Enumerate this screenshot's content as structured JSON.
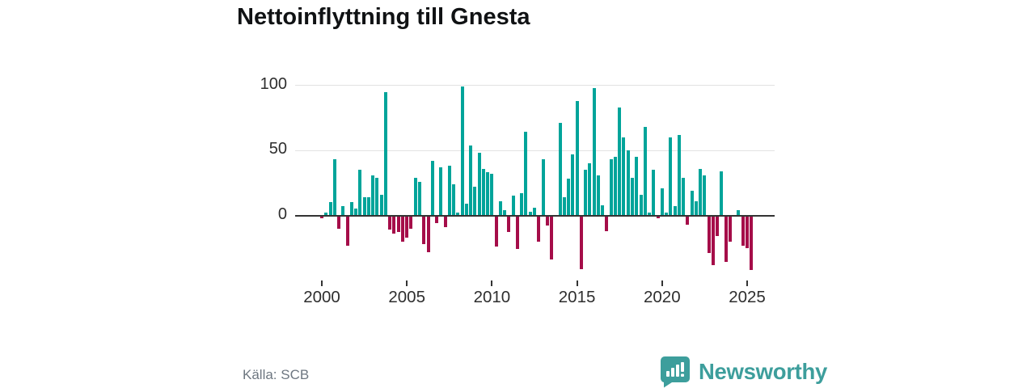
{
  "title": "Nettoinflyttning till Gnesta",
  "source": "Källa: SCB",
  "brand": {
    "name": "Newsworthy",
    "color": "#3d9e9c",
    "icon": "speech-bubble-bar-chart"
  },
  "chart_data": {
    "type": "bar",
    "title": "Nettoinflyttning till Gnesta",
    "x_unit": "quarter",
    "start_year": 2000,
    "start_quarter": 1,
    "values": [
      -2,
      2,
      10,
      43,
      -10,
      7,
      -23,
      10,
      5,
      35,
      14,
      14,
      31,
      29,
      16,
      95,
      -11,
      -14,
      -13,
      -20,
      -17,
      -10,
      29,
      26,
      -22,
      -28,
      42,
      -6,
      37,
      -9,
      38,
      24,
      2,
      99,
      9,
      54,
      22,
      48,
      36,
      33,
      32,
      -24,
      11,
      4,
      -13,
      15,
      -26,
      17,
      64,
      3,
      6,
      -20,
      43,
      -8,
      -34,
      -1,
      71,
      14,
      28,
      47,
      88,
      -41,
      35,
      40,
      98,
      31,
      8,
      -12,
      43,
      45,
      83,
      60,
      50,
      29,
      45,
      16,
      68,
      2,
      35,
      -2,
      21,
      2,
      60,
      7,
      62,
      29,
      -7,
      19,
      11,
      36,
      31,
      -29,
      -38,
      -16,
      34,
      -36,
      -20,
      0,
      4,
      -23,
      -25,
      -42
    ],
    "x_tick_labels": [
      "2000",
      "2005",
      "2010",
      "2015",
      "2020",
      "2025"
    ],
    "y_ticks": [
      0,
      50,
      100
    ],
    "ylim": [
      -50,
      105
    ],
    "grid": "horizontal",
    "legend": "none",
    "positive_color": "#00a49a",
    "negative_color": "#a50d49",
    "axis_color": "#333333",
    "gridline_color": "#e2e2e2",
    "source": "Källa: SCB"
  }
}
